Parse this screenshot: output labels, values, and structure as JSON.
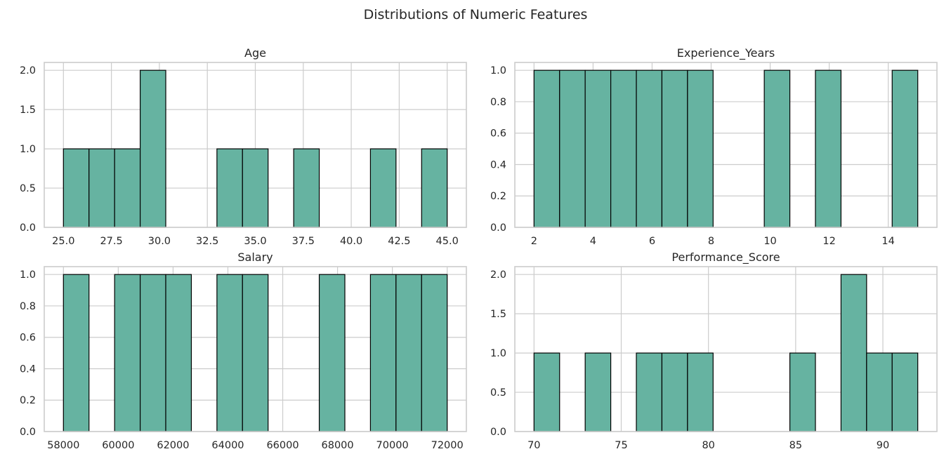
{
  "figure": {
    "suptitle": "Distributions of Numeric Features"
  },
  "style": {
    "bar_color": "#66b3a1",
    "bar_edge": "#000000",
    "grid_color": "#cccccc",
    "axes_edge": "#cccccc",
    "text_color": "#262626"
  },
  "chart_data": [
    {
      "type": "bar",
      "title": "Age",
      "xlabel": "",
      "ylabel": "",
      "grid": true,
      "xlim": [
        24.0,
        46.0
      ],
      "ylim": [
        0,
        2.1
      ],
      "xticks": [
        25.0,
        27.5,
        30.0,
        32.5,
        35.0,
        37.5,
        40.0,
        42.5,
        45.0
      ],
      "xtick_labels": [
        "25.0",
        "27.5",
        "30.0",
        "32.5",
        "35.0",
        "37.5",
        "40.0",
        "42.5",
        "45.0"
      ],
      "yticks": [
        0.0,
        0.5,
        1.0,
        1.5,
        2.0
      ],
      "ytick_labels": [
        "0.0",
        "0.5",
        "1.0",
        "1.5",
        "2.0"
      ],
      "bin_edges": [
        25.0,
        26.333,
        27.667,
        29.0,
        30.333,
        31.667,
        33.0,
        34.333,
        35.667,
        37.0,
        38.333,
        39.667,
        41.0,
        42.333,
        43.667,
        45.0
      ],
      "counts": [
        1,
        1,
        1,
        2,
        0,
        0,
        1,
        1,
        0,
        1,
        0,
        0,
        1,
        0,
        1
      ]
    },
    {
      "type": "bar",
      "title": "Experience_Years",
      "xlabel": "",
      "ylabel": "",
      "grid": true,
      "xlim": [
        1.35,
        15.65
      ],
      "ylim": [
        0,
        1.05
      ],
      "xticks": [
        2,
        4,
        6,
        8,
        10,
        12,
        14
      ],
      "xtick_labels": [
        "2",
        "4",
        "6",
        "8",
        "10",
        "12",
        "14"
      ],
      "yticks": [
        0.0,
        0.2,
        0.4,
        0.6,
        0.8,
        1.0
      ],
      "ytick_labels": [
        "0.0",
        "0.2",
        "0.4",
        "0.6",
        "0.8",
        "1.0"
      ],
      "bin_edges": [
        2.0,
        2.867,
        3.733,
        4.6,
        5.467,
        6.333,
        7.2,
        8.067,
        8.933,
        9.8,
        10.667,
        11.533,
        12.4,
        13.267,
        14.133,
        15.0
      ],
      "counts": [
        1,
        1,
        1,
        1,
        1,
        1,
        1,
        0,
        0,
        1,
        0,
        1,
        0,
        0,
        1
      ]
    },
    {
      "type": "bar",
      "title": "Salary",
      "xlabel": "",
      "ylabel": "",
      "grid": true,
      "xlim": [
        57300,
        72700
      ],
      "ylim": [
        0,
        1.05
      ],
      "xticks": [
        58000,
        60000,
        62000,
        64000,
        66000,
        68000,
        70000,
        72000
      ],
      "xtick_labels": [
        "58000",
        "60000",
        "62000",
        "64000",
        "66000",
        "68000",
        "70000",
        "72000"
      ],
      "yticks": [
        0.0,
        0.2,
        0.4,
        0.6,
        0.8,
        1.0
      ],
      "ytick_labels": [
        "0.0",
        "0.2",
        "0.4",
        "0.6",
        "0.8",
        "1.0"
      ],
      "bin_edges": [
        58000,
        58933,
        59867,
        60800,
        61733,
        62667,
        63600,
        64533,
        65467,
        66400,
        67333,
        68267,
        69200,
        70133,
        71067,
        72000
      ],
      "counts": [
        1,
        0,
        1,
        1,
        1,
        0,
        1,
        1,
        0,
        0,
        1,
        0,
        1,
        1,
        1
      ]
    },
    {
      "type": "bar",
      "title": "Performance_Score",
      "xlabel": "",
      "ylabel": "",
      "grid": true,
      "xlim": [
        68.9,
        93.1
      ],
      "ylim": [
        0,
        2.1
      ],
      "xticks": [
        70,
        75,
        80,
        85,
        90
      ],
      "xtick_labels": [
        "70",
        "75",
        "80",
        "85",
        "90"
      ],
      "yticks": [
        0.0,
        0.5,
        1.0,
        1.5,
        2.0
      ],
      "ytick_labels": [
        "0.0",
        "0.5",
        "1.0",
        "1.5",
        "2.0"
      ],
      "bin_edges": [
        70.0,
        71.467,
        72.933,
        74.4,
        75.867,
        77.333,
        78.8,
        80.267,
        81.733,
        83.2,
        84.667,
        86.133,
        87.6,
        89.067,
        90.533,
        92.0
      ],
      "counts": [
        1,
        0,
        1,
        0,
        1,
        1,
        1,
        0,
        0,
        0,
        1,
        0,
        2,
        1,
        1
      ]
    }
  ]
}
